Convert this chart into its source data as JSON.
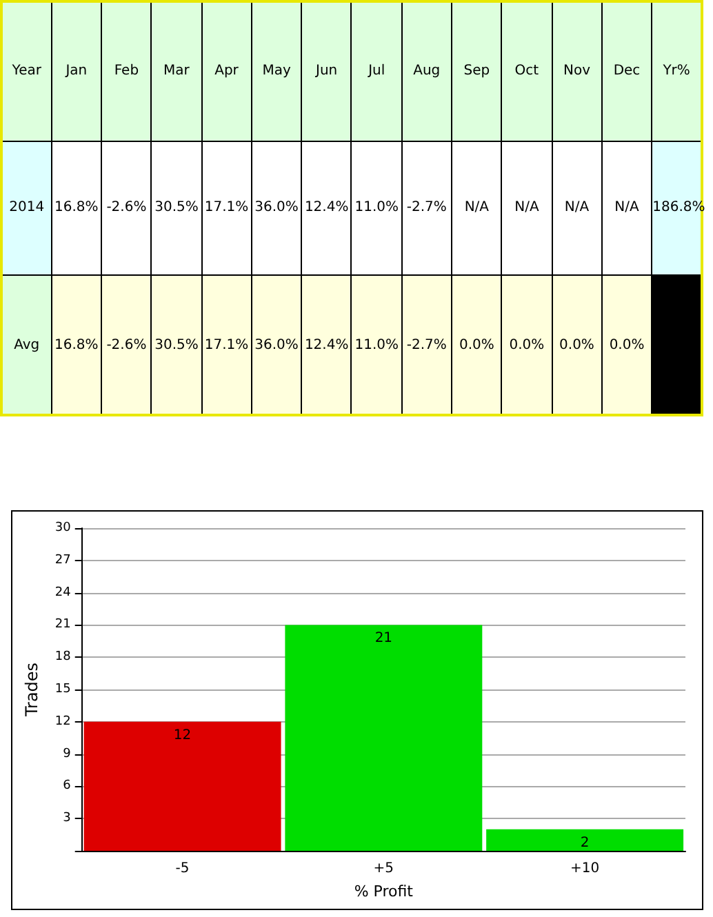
{
  "chart_data": [
    {
      "type": "other",
      "categories": [
        "Year",
        "Jan",
        "Feb",
        "Mar",
        "Apr",
        "May",
        "Jun",
        "Jul",
        "Aug",
        "Sep",
        "Oct",
        "Nov",
        "Dec",
        "Yr%"
      ],
      "y_categories": [
        "2014",
        "Avg"
      ],
      "cell_labels": [
        [
          "16.8%",
          "-2.6%",
          "30.5%",
          "17.1%",
          "36.0%",
          "12.4%",
          "11.0%",
          "-2.7%",
          "N/A",
          "N/A",
          "N/A",
          "N/A",
          "186.8%"
        ],
        [
          "16.8%",
          "-2.6%",
          "30.5%",
          "17.1%",
          "36.0%",
          "12.4%",
          "11.0%",
          "-2.7%",
          "0.0%",
          "0.0%",
          "0.0%",
          "0.0%",
          null
        ]
      ],
      "colors": [
        [
          "#ddffdd",
          "#ddffdd",
          "#ddffdd",
          "#ddffdd",
          "#ddffdd",
          "#ddffdd",
          "#ddffdd",
          "#ddffdd",
          "#ddffdd",
          "#ddffdd",
          "#ddffdd",
          "#ddffdd",
          "#ddffdd",
          "#ddffdd"
        ],
        [
          "#ddffff",
          "#ffffff",
          "#ffffff",
          "#ffffff",
          "#ffffff",
          "#ffffff",
          "#ffffff",
          "#ffffff",
          "#ffffff",
          "#ffffff",
          "#ffffff",
          "#ffffff",
          "#ffffff",
          "#ddffff"
        ],
        [
          "#ddffdd",
          "#ffffdd",
          "#ffffdd",
          "#ffffdd",
          "#ffffdd",
          "#ffffdd",
          "#ffffdd",
          "#ffffdd",
          "#ffffdd",
          "#ffffdd",
          "#ffffdd",
          "#ffffdd",
          "#ffffdd",
          "#000000"
        ]
      ]
    },
    {
      "type": "bar",
      "categories": [
        "-5",
        "+5",
        "+10"
      ],
      "values": [
        12,
        21,
        2
      ],
      "colors": [
        "#dd0000",
        "#00dd00",
        "#00dd00"
      ],
      "xlabel": "% Profit",
      "ylabel": "Trades",
      "ylim": [
        0,
        30
      ],
      "yticks": [
        {
          "value": 0,
          "label": null
        },
        3,
        6,
        9,
        12,
        15,
        18,
        21,
        24,
        27,
        30
      ],
      "grid": "y",
      "data_labels": true
    }
  ]
}
